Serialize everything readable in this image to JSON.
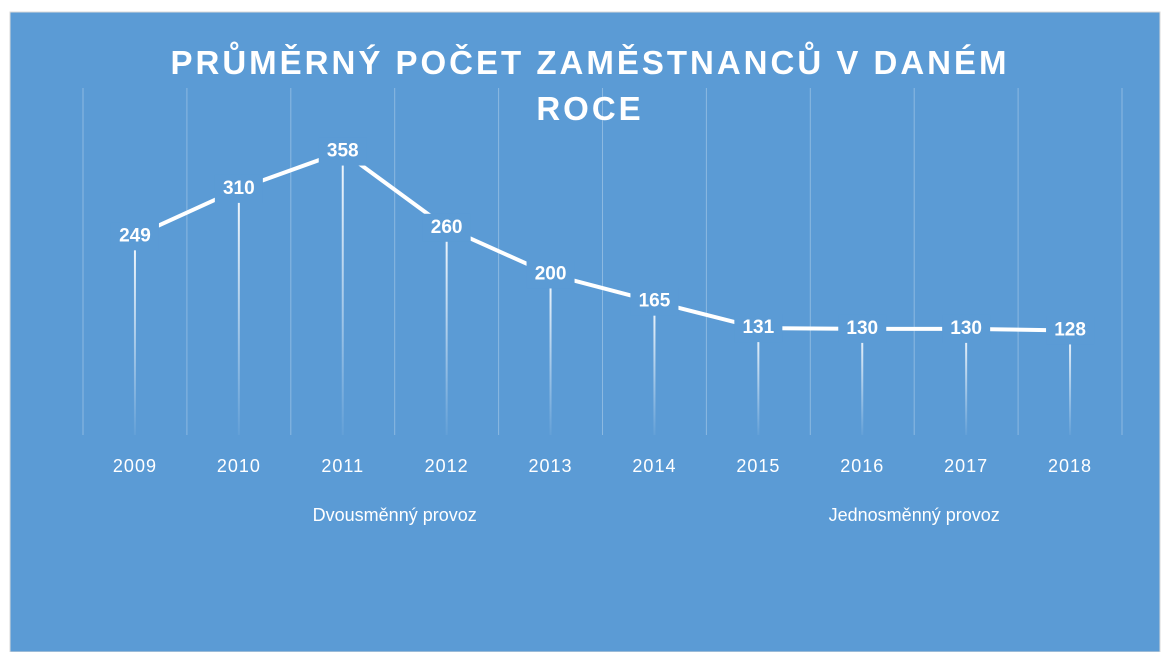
{
  "chart_data": {
    "type": "line",
    "title": "PRŮMĚRNÝ POČET ZAMĚSTNANCŮ V DANÉM ROCE",
    "categories": [
      "2009",
      "2010",
      "2011",
      "2012",
      "2013",
      "2014",
      "2015",
      "2016",
      "2017",
      "2018"
    ],
    "values": [
      249,
      310,
      358,
      260,
      200,
      165,
      131,
      130,
      130,
      128
    ],
    "color": "#ffffff",
    "groups": [
      {
        "label": "Dvousměnný provoz",
        "from": "2009",
        "to": "2014"
      },
      {
        "label": "Jednosměnný provoz",
        "from": "2015",
        "to": "2018"
      }
    ],
    "ylim": [
      0,
      450
    ],
    "data_labels": true,
    "drop_lines": true
  }
}
